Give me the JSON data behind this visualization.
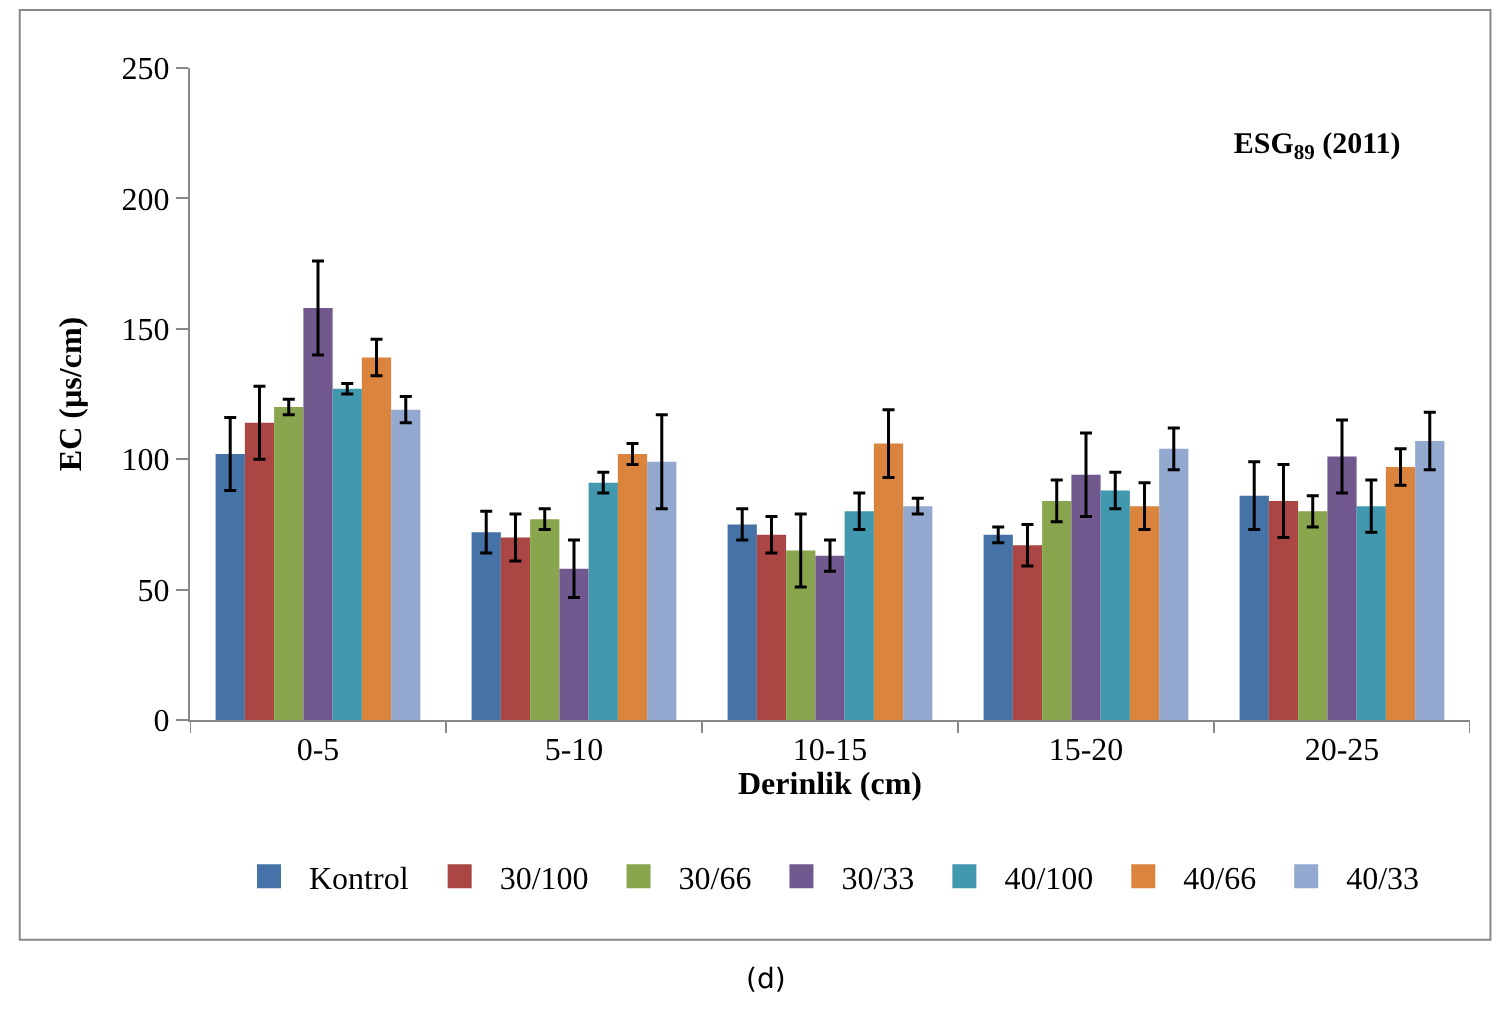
{
  "chart_data": {
    "type": "bar",
    "title": "ESG$_{89}$ (2011)",
    "xlabel": "Derinlik (cm)",
    "ylabel": "EC (µs/cm)",
    "categories": [
      "0-5",
      "5-10",
      "10-15",
      "15-20",
      "20-25"
    ],
    "series": [
      {
        "name": "Kontrol",
        "color": "#4572a7",
        "values": [
          102,
          72,
          75,
          71,
          86
        ],
        "errors": [
          14,
          8,
          6,
          3,
          13
        ]
      },
      {
        "name": "30/100",
        "color": "#aa4643",
        "values": [
          114,
          70,
          71,
          67,
          84
        ],
        "errors": [
          14,
          9,
          7,
          8,
          14
        ]
      },
      {
        "name": "30/66",
        "color": "#89a54e",
        "values": [
          120,
          77,
          65,
          84,
          80
        ],
        "errors": [
          3,
          4,
          14,
          8,
          6
        ]
      },
      {
        "name": "30/33",
        "color": "#71588f",
        "values": [
          158,
          58,
          63,
          94,
          101
        ],
        "errors": [
          18,
          11,
          6,
          16,
          14
        ]
      },
      {
        "name": "40/100",
        "color": "#4198af",
        "values": [
          127,
          91,
          80,
          88,
          82
        ],
        "errors": [
          2,
          4,
          7,
          7,
          10
        ]
      },
      {
        "name": "40/66",
        "color": "#db843d",
        "values": [
          139,
          102,
          106,
          82,
          97
        ],
        "errors": [
          7,
          4,
          13,
          9,
          7
        ]
      },
      {
        "name": "40/33",
        "color": "#93a9cf",
        "values": [
          119,
          99,
          82,
          104,
          107
        ],
        "errors": [
          5,
          18,
          3,
          8,
          11
        ]
      }
    ],
    "ylim": [
      0,
      250
    ],
    "yticks": [
      0,
      50,
      100,
      150,
      200,
      250
    ],
    "legend": "bottom",
    "annotations": [
      "(d)"
    ]
  }
}
